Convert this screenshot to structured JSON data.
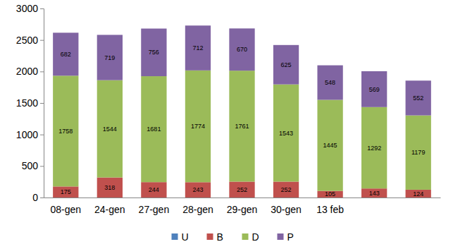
{
  "chart_data": {
    "type": "bar",
    "stacked": true,
    "data_labels": true,
    "grid": false,
    "legend": "bottom",
    "categories": [
      "08-gen",
      "24-gen",
      "27-gen",
      "28-gen",
      "29-gen",
      "30-gen",
      "13 feb",
      null,
      null
    ],
    "series": [
      {
        "name": "U",
        "color": "#4f81bd",
        "data_labels": false,
        "values": [
          0,
          0,
          0,
          0,
          0,
          0,
          0,
          0,
          0
        ]
      },
      {
        "name": "B",
        "color": "#c0504d",
        "values": [
          175,
          318,
          244,
          243,
          252,
          252,
          105,
          143,
          124
        ]
      },
      {
        "name": "D",
        "color": "#9bbb59",
        "values": [
          1758,
          1544,
          1681,
          1774,
          1761,
          1543,
          1445,
          1292,
          1179
        ]
      },
      {
        "name": "P",
        "color": "#8064a2",
        "values": [
          682,
          719,
          756,
          712,
          670,
          625,
          548,
          569,
          552
        ]
      }
    ],
    "ylim": [
      0,
      3000
    ],
    "yticks": [
      0,
      500,
      1000,
      1500,
      2000,
      2500,
      3000
    ]
  }
}
